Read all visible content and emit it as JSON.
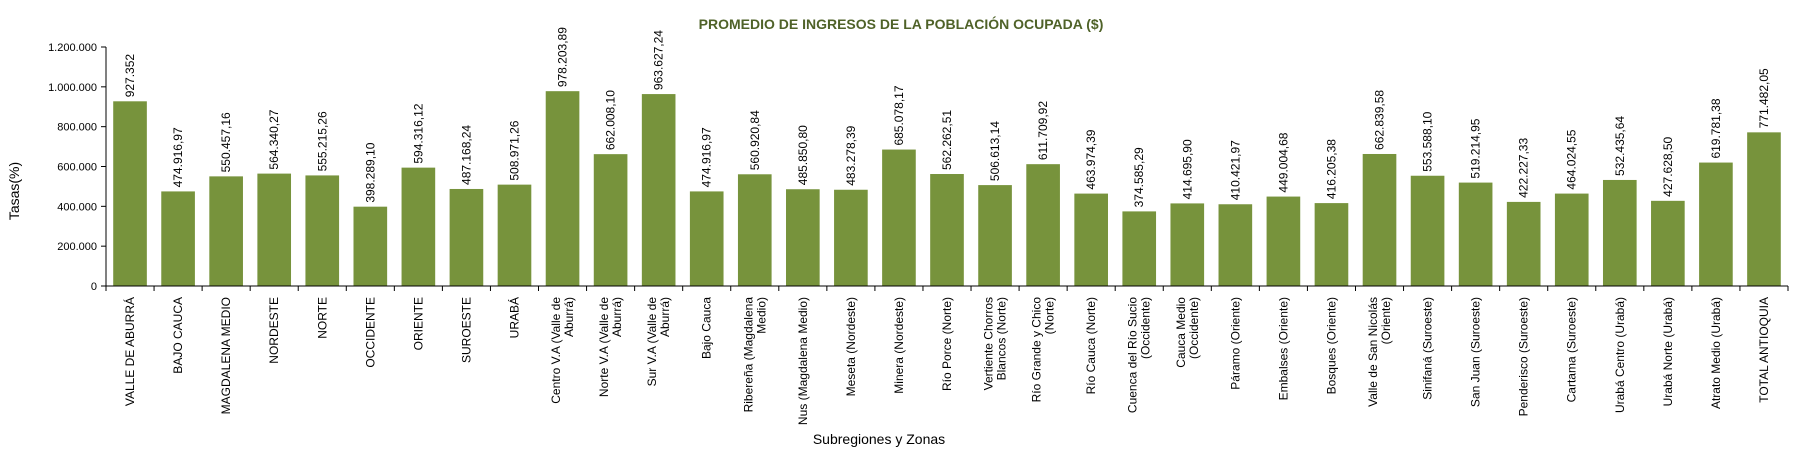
{
  "chart_data": {
    "type": "bar",
    "title": "PROMEDIO DE INGRESOS DE LA POBLACIÓN OCUPADA ($)",
    "xlabel": "Subregiones y Zonas",
    "ylabel": "Tasas(%)",
    "ylim": [
      0,
      1200000
    ],
    "yticks": [
      "0",
      "200.000",
      "400.000",
      "600.000",
      "800.000",
      "1.000.000",
      "1.200.000"
    ],
    "ytick_values": [
      0,
      200000,
      400000,
      600000,
      800000,
      1000000,
      1200000
    ],
    "grid": false,
    "legend": "none",
    "bar_color": "#77933C",
    "title_color": "#4F6228",
    "categories": [
      [
        "VALLE DE ABURRÁ"
      ],
      [
        "BAJO CAUCA"
      ],
      [
        "MAGDALENA MEDIO"
      ],
      [
        "NORDESTE"
      ],
      [
        "NORTE"
      ],
      [
        "OCCIDENTE"
      ],
      [
        "ORIENTE"
      ],
      [
        "SUROESTE"
      ],
      [
        "URABÁ"
      ],
      [
        "Centro V.A (Valle de",
        "Aburrá)"
      ],
      [
        "Norte V.A (Valle de",
        "Aburrá)"
      ],
      [
        "Sur V.A (Valle de",
        "Aburrá)"
      ],
      [
        "Bajo Cauca"
      ],
      [
        "Ribereña (Magdalena",
        "Medio)"
      ],
      [
        "Nus (Magdalena Medio)"
      ],
      [
        "Meseta (Nordeste)"
      ],
      [
        "Minera (Nordeste)"
      ],
      [
        "Río Porce (Norte)"
      ],
      [
        "Vertiente Chorros",
        "Blancos (Norte)"
      ],
      [
        "Río Grande y Chico",
        "(Norte)"
      ],
      [
        "Río Cauca (Norte)"
      ],
      [
        "Cuenca del Río Sucio",
        "(Occidente)"
      ],
      [
        "Cauca Medio",
        "(Occidente)"
      ],
      [
        "Páramo (Oriente)"
      ],
      [
        "Embalses (Oriente)"
      ],
      [
        "Bosques (Oriente)"
      ],
      [
        "Valle de San Nicolás",
        "(Oriente)"
      ],
      [
        "Sinifaná (Suroeste)"
      ],
      [
        "San Juan (Suroeste)"
      ],
      [
        "Penderisco (Suroeste)"
      ],
      [
        "Cartama (Suroeste)"
      ],
      [
        "Urabá Centro (Urabá)"
      ],
      [
        "Urabá Norte (Urabá)"
      ],
      [
        "Atrato Medio (Urabá)"
      ],
      [
        "TOTAL ANTIOQUIA"
      ]
    ],
    "values": [
      927352,
      474916.97,
      550457.16,
      564340.27,
      555215.26,
      398289.1,
      594316.12,
      487168.24,
      508971.26,
      978203.89,
      662008.1,
      963627.24,
      474916.97,
      560920.84,
      485850.8,
      483278.39,
      685078.17,
      562262.51,
      506613.14,
      611709.92,
      463974.39,
      374585.29,
      414695.9,
      410421.97,
      449004.68,
      416205.38,
      662839.58,
      553588.1,
      519214.95,
      422227.33,
      464024.55,
      532435.64,
      427628.5,
      619781.38,
      771482.05
    ],
    "value_labels": [
      "927.352",
      "474.916,97",
      "550.457,16",
      "564.340,27",
      "555.215,26",
      "398.289,10",
      "594.316,12",
      "487.168,24",
      "508.971,26",
      "978.203,89",
      "662.008,10",
      "963.627,24",
      "474.916,97",
      "560.920,84",
      "485.850,80",
      "483.278,39",
      "685.078,17",
      "562.262,51",
      "506.613,14",
      "611.709,92",
      "463.974,39",
      "374.585,29",
      "414.695,90",
      "410.421,97",
      "449.004,68",
      "416.205,38",
      "662.839,58",
      "553.588,10",
      "519.214,95",
      "422.227,33",
      "464.024,55",
      "532.435,64",
      "427.628,50",
      "619.781,38",
      "771.482,05"
    ]
  }
}
